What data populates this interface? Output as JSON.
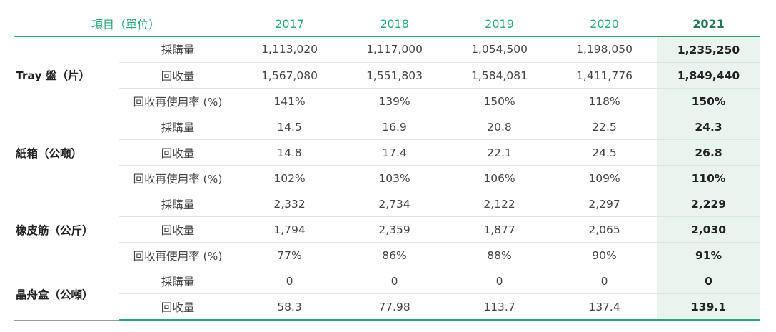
{
  "header": {
    "item_label": "項目（單位）",
    "years": [
      "2017",
      "2018",
      "2019",
      "2020",
      "2021"
    ]
  },
  "groups": [
    {
      "category": "Tray 盤（片）",
      "rows": [
        {
          "item": "採購量",
          "values": [
            "1,113,020",
            "1,117,000",
            "1,054,500",
            "1,198,050",
            "1,235,250"
          ]
        },
        {
          "item": "回收量",
          "values": [
            "1,567,080",
            "1,551,803",
            "1,584,081",
            "1,411,776",
            "1,849,440"
          ]
        },
        {
          "item": "回收再使用率 (%)",
          "values": [
            "141%",
            "139%",
            "150%",
            "118%",
            "150%"
          ]
        }
      ]
    },
    {
      "category": "紙箱（公噸）",
      "rows": [
        {
          "item": "採購量",
          "values": [
            "14.5",
            "16.9",
            "20.8",
            "22.5",
            "24.3"
          ]
        },
        {
          "item": "回收量",
          "values": [
            "14.8",
            "17.4",
            "22.1",
            "24.5",
            "26.8"
          ]
        },
        {
          "item": "回收再使用率 (%)",
          "values": [
            "102%",
            "103%",
            "106%",
            "109%",
            "110%"
          ]
        }
      ]
    },
    {
      "category": "橡皮筋（公斤）",
      "rows": [
        {
          "item": "採購量",
          "values": [
            "2,332",
            "2,734",
            "2,122",
            "2,297",
            "2,229"
          ]
        },
        {
          "item": "回收量",
          "values": [
            "1,794",
            "2,359",
            "1,877",
            "2,065",
            "2,030"
          ]
        },
        {
          "item": "回收再使用率 (%)",
          "values": [
            "77%",
            "86%",
            "88%",
            "90%",
            "91%"
          ]
        }
      ]
    },
    {
      "category": "晶舟盒（公噸）",
      "rows": [
        {
          "item": "採購量",
          "values": [
            "0",
            "0",
            "0",
            "0",
            "0"
          ]
        },
        {
          "item": "回收量",
          "values": [
            "58.3",
            "77.98",
            "113.7",
            "137.4",
            "139.1"
          ]
        }
      ]
    }
  ],
  "colors": {
    "accent": "#2aa877",
    "highlight_bg": "#eaf4ef",
    "highlight_text": "#1f7a55"
  }
}
